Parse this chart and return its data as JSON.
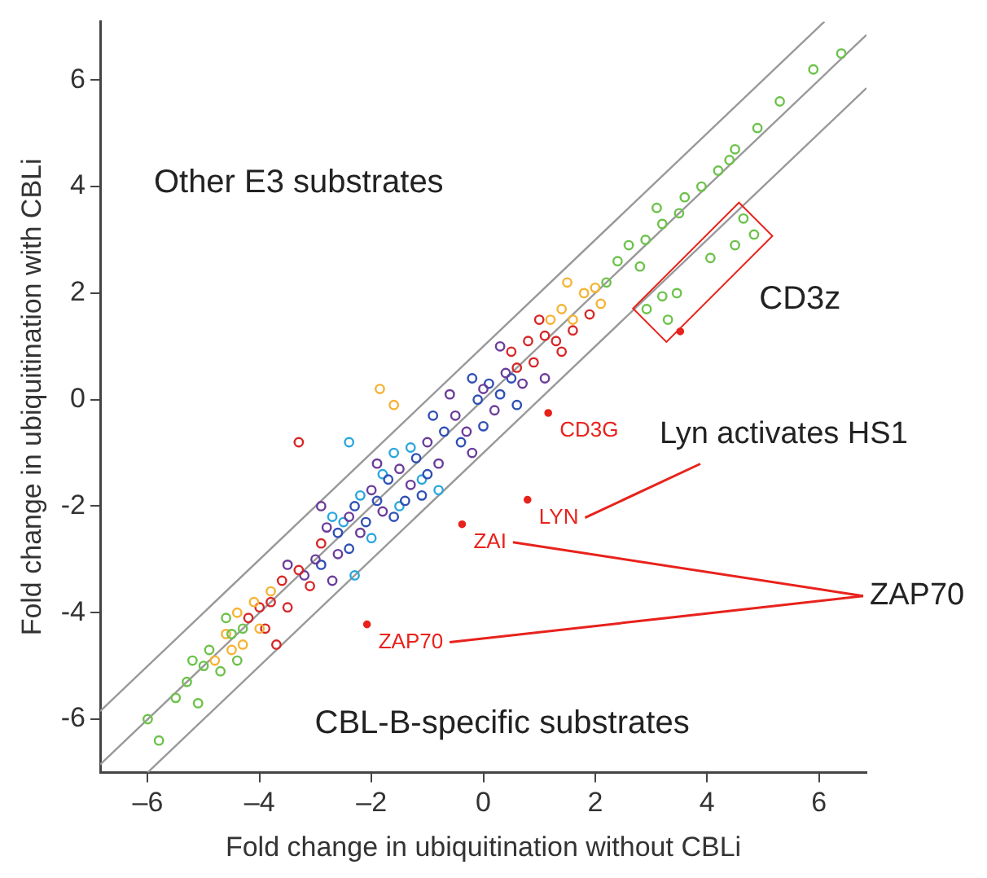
{
  "chart_data": {
    "type": "scatter",
    "xlabel": "Fold change in ubiquitination without CBLi",
    "ylabel": "Fold change in ubiquitination with CBLi",
    "xlim": [
      -6.85,
      6.85
    ],
    "ylim": [
      -7,
      7.1
    ],
    "xticks": [
      {
        "value": -6,
        "label": "–6"
      },
      {
        "value": -4,
        "label": "–4"
      },
      {
        "value": -2,
        "label": "–2"
      },
      0,
      2,
      4,
      6
    ],
    "yticks": [
      -6,
      -4,
      -2,
      0,
      2,
      4,
      6
    ],
    "grid": false,
    "legend": false,
    "marker": "circle",
    "series": [
      {
        "type": "line",
        "color": "#999999",
        "marker": "none",
        "x": [
          -6.85,
          6.1
        ],
        "values": [
          -5.85,
          7.1
        ]
      },
      {
        "type": "line",
        "color": "#999999",
        "marker": "none",
        "x": [
          -6.85,
          6.85
        ],
        "values": [
          -6.85,
          6.85
        ]
      },
      {
        "type": "line",
        "color": "#999999",
        "marker": "none",
        "x": [
          -6,
          6.85
        ],
        "values": [
          -7,
          5.85
        ]
      },
      {
        "color": "#6cc24a",
        "x": [
          2.6,
          2.9,
          3.2,
          3.5,
          3.6,
          3.9,
          4.2,
          4.4,
          4.5,
          4.9,
          5.3,
          5.9,
          6.4,
          2.4,
          2.8,
          3.1,
          2.2,
          -6.0,
          -5.8,
          -5.5,
          -5.3,
          -5.1,
          -5.0,
          -4.9,
          -4.7,
          -4.5,
          -4.3,
          -4.6,
          -5.2,
          -4.4,
          4.65,
          4.84,
          4.5,
          4.06,
          3.46,
          3.2,
          2.92,
          3.3
        ],
        "values": [
          2.9,
          3.0,
          3.3,
          3.5,
          3.8,
          4.0,
          4.3,
          4.5,
          4.7,
          5.1,
          5.6,
          6.2,
          6.5,
          2.6,
          2.5,
          3.6,
          2.2,
          -6.0,
          -6.4,
          -5.6,
          -5.3,
          -5.7,
          -5.0,
          -4.7,
          -5.1,
          -4.4,
          -4.3,
          -4.1,
          -4.9,
          -4.9,
          3.4,
          3.1,
          2.9,
          2.66,
          2.0,
          1.94,
          1.7,
          1.5
        ]
      },
      {
        "color": "#f5b335",
        "x": [
          -4.8,
          -4.6,
          -4.4,
          -4.3,
          -4.1,
          -4.0,
          -3.8,
          -4.5,
          1.4,
          1.6,
          1.8,
          2.0,
          1.5,
          2.1,
          1.2,
          -1.85,
          -1.6
        ],
        "values": [
          -4.9,
          -4.4,
          -4.0,
          -4.6,
          -3.8,
          -4.3,
          -3.6,
          -4.7,
          1.7,
          1.5,
          2.0,
          2.1,
          2.2,
          1.8,
          1.5,
          0.2,
          -0.1
        ]
      },
      {
        "color": "#d62728",
        "x": [
          -4.2,
          -4.0,
          -3.9,
          -3.8,
          -3.6,
          -3.5,
          -3.7,
          -3.3,
          -3.1,
          -2.9,
          0.6,
          0.9,
          1.1,
          1.3,
          1.0,
          1.4,
          0.8,
          1.6,
          1.9,
          0.5,
          -3.3
        ],
        "values": [
          -4.1,
          -3.9,
          -4.3,
          -3.8,
          -3.4,
          -3.9,
          -4.6,
          -3.2,
          -3.5,
          -2.7,
          0.6,
          0.7,
          1.2,
          1.1,
          1.5,
          0.9,
          1.1,
          1.3,
          1.6,
          0.9,
          -0.8
        ]
      },
      {
        "color": "#6a3d9a",
        "x": [
          -3.5,
          -3.2,
          -3.0,
          -2.8,
          -2.6,
          -2.4,
          -2.2,
          -2.0,
          -1.8,
          -1.5,
          -1.3,
          -1.0,
          -0.8,
          -0.5,
          -0.3,
          0.0,
          0.2,
          0.4,
          0.7,
          -0.6,
          -1.9,
          -0.2,
          -2.7,
          1.1,
          0.3,
          -2.9
        ],
        "values": [
          -3.1,
          -3.3,
          -3.0,
          -2.4,
          -2.9,
          -2.2,
          -2.5,
          -1.7,
          -2.1,
          -1.3,
          -1.6,
          -0.8,
          -1.2,
          -0.3,
          -0.6,
          0.2,
          -0.2,
          0.5,
          0.3,
          0.1,
          -1.2,
          -1.0,
          -3.4,
          0.4,
          1.0,
          -2.0
        ]
      },
      {
        "color": "#2f4fb5",
        "x": [
          -2.9,
          -2.6,
          -2.3,
          -2.1,
          -1.9,
          -1.7,
          -1.4,
          -1.2,
          -1.0,
          -0.7,
          -0.4,
          -0.1,
          0.1,
          0.3,
          0.5,
          -1.6,
          -0.9,
          0.0,
          -2.4,
          -1.1,
          -0.2,
          0.6
        ],
        "values": [
          -3.1,
          -2.5,
          -2.0,
          -2.3,
          -1.9,
          -1.5,
          -1.9,
          -1.1,
          -1.4,
          -0.6,
          -0.8,
          0.0,
          0.3,
          0.1,
          0.4,
          -2.2,
          -0.3,
          -0.5,
          -2.8,
          -1.8,
          0.4,
          -0.1
        ]
      },
      {
        "color": "#2ba6de",
        "x": [
          -2.5,
          -2.2,
          -2.0,
          -1.8,
          -1.5,
          -1.3,
          -1.1,
          -0.8,
          -2.7,
          -1.6,
          -2.3,
          -2.4
        ],
        "values": [
          -2.3,
          -1.8,
          -2.6,
          -1.4,
          -2.0,
          -0.9,
          -1.5,
          -1.7,
          -2.2,
          -1.0,
          -3.3,
          -0.8
        ]
      },
      {
        "color": "#e8221c",
        "marker": "circle",
        "x": [
          1.16,
          0.79,
          -0.38,
          -2.08,
          3.52
        ],
        "values": [
          -0.25,
          -1.88,
          -2.34,
          -4.22,
          1.28
        ]
      }
    ],
    "annotations": [
      "Other E3 substrates",
      "CBL-B-specific substrates",
      "CD3z",
      "Lyn activates HS1",
      "ZAP70",
      {
        "text": "CD3G",
        "x": 1.16,
        "y": -0.25
      },
      {
        "text": "LYN",
        "x": 0.79,
        "y": -1.88
      },
      {
        "text": "ZAI",
        "x": -0.38,
        "y": -2.34
      },
      {
        "text": "ZAP70",
        "x": -2.08,
        "y": -4.22
      }
    ]
  }
}
